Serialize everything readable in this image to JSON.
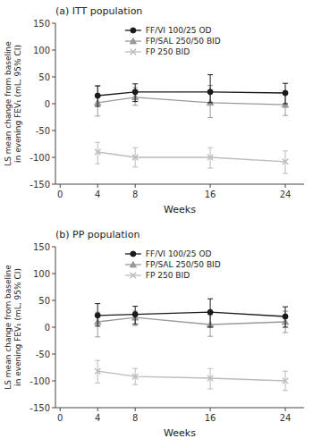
{
  "chart_data": [
    {
      "type": "line",
      "title": "(a) ITT population",
      "xlabel": "Weeks",
      "ylabel": "LS mean change from baseline\nin evening FEV₁ (mL, 95% CI)",
      "x": [
        4,
        8,
        16,
        24
      ],
      "xlim": [
        -0.5,
        26
      ],
      "xticks": [
        0,
        4,
        8,
        16,
        24
      ],
      "ylim": [
        -150,
        150
      ],
      "yticks": [
        -150,
        -100,
        -50,
        0,
        50,
        100,
        150
      ],
      "grid": false,
      "legend": "upper left",
      "series": [
        {
          "name": "FF/VI 100/25 OD",
          "color": "#1a1a1a",
          "marker": "circle",
          "line_style": "solid",
          "values": [
            15,
            22,
            22,
            20
          ],
          "error_low": [
            20,
            18,
            20,
            20
          ],
          "error_high": [
            18,
            15,
            32,
            18
          ]
        },
        {
          "name": "FP/SAL 250/50 BID",
          "color": "#999999",
          "marker": "triangle",
          "line_style": "solid",
          "values": [
            2,
            12,
            2,
            -2
          ],
          "error_low": [
            25,
            15,
            28,
            20
          ],
          "error_high": [
            32,
            18,
            32,
            20
          ]
        },
        {
          "name": "FP 250 BID",
          "color": "#bbbbbb",
          "marker": "x",
          "line_style": "solid",
          "values": [
            -90,
            -100,
            -100,
            -108
          ],
          "error_low": [
            22,
            18,
            20,
            22
          ],
          "error_high": [
            18,
            18,
            18,
            20
          ]
        }
      ]
    },
    {
      "type": "line",
      "title": "(b) PP population",
      "xlabel": "Weeks",
      "ylabel": "LS mean change from baseline\nin evening FEV₁ (mL, 95% CI)",
      "x": [
        4,
        8,
        16,
        24
      ],
      "xlim": [
        -0.5,
        26
      ],
      "xticks": [
        0,
        4,
        8,
        16,
        24
      ],
      "ylim": [
        -150,
        150
      ],
      "yticks": [
        -150,
        -100,
        -50,
        0,
        50,
        100,
        150
      ],
      "grid": false,
      "legend": "upper left",
      "series": [
        {
          "name": "FF/VI 100/25 OD",
          "color": "#1a1a1a",
          "marker": "circle",
          "line_style": "solid",
          "values": [
            22,
            24,
            28,
            20
          ],
          "error_low": [
            20,
            18,
            28,
            20
          ],
          "error_high": [
            22,
            15,
            25,
            18
          ]
        },
        {
          "name": "FP/SAL 250/50 BID",
          "color": "#999999",
          "marker": "triangle",
          "line_style": "solid",
          "values": [
            10,
            18,
            5,
            10
          ],
          "error_low": [
            28,
            15,
            22,
            20
          ],
          "error_high": [
            18,
            12,
            18,
            20
          ]
        },
        {
          "name": "FP 250 BID",
          "color": "#bbbbbb",
          "marker": "x",
          "line_style": "solid",
          "values": [
            -82,
            -92,
            -95,
            -100
          ],
          "error_low": [
            22,
            15,
            20,
            18
          ],
          "error_high": [
            20,
            15,
            18,
            18
          ]
        }
      ]
    }
  ]
}
